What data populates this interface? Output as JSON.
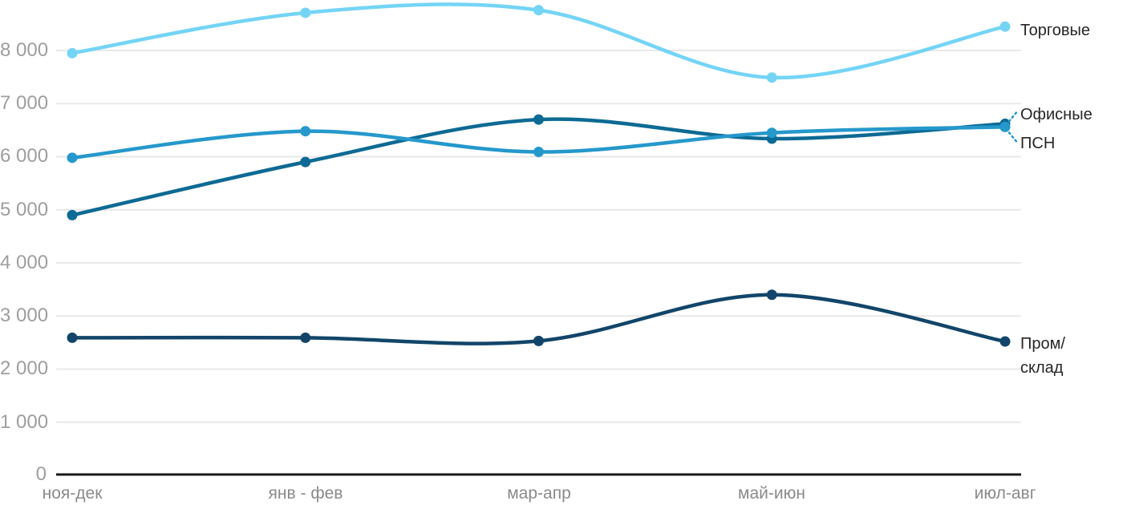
{
  "chart_data": {
    "type": "line",
    "title": "",
    "xlabel": "",
    "ylabel": "",
    "categories": [
      "ноя-дек",
      "янв - фев",
      "мар-апр",
      "май-июн",
      "июл-авг"
    ],
    "series": [
      {
        "name": "Торговые",
        "color": "#74d4f6",
        "values": [
          7950,
          8710,
          8760,
          7490,
          8450
        ]
      },
      {
        "name": "Офисные",
        "color": "#0d6a94",
        "values": [
          4900,
          5900,
          6700,
          6340,
          6620
        ]
      },
      {
        "name": "ПСН",
        "color": "#2598cc",
        "values": [
          5980,
          6480,
          6090,
          6450,
          6560
        ]
      },
      {
        "name": "Пром/склад",
        "color": "#124569",
        "values": [
          2590,
          2590,
          2530,
          3400,
          2520
        ]
      }
    ],
    "y_ticks": [
      "8 000",
      "7 000",
      "6 000",
      "5 000",
      "4 000",
      "3 000",
      "2 000",
      "1 000",
      "0"
    ],
    "ylim": [
      0,
      8800
    ],
    "y_step": 1000,
    "grid": true,
    "legend_position": "right-inline",
    "grid_color": "#e8e8e8",
    "axis_line_color": "#1a1a1a",
    "y_tick_color": "#9e9e9e",
    "x_tick_color": "#8a8a8a",
    "label_color": "#262626",
    "connector_color": "#2598cc"
  },
  "series_labels": {
    "torgovye": "Торговые",
    "ofisnye": "Офисные",
    "psn": "ПСН",
    "prom_line1": "Пром/",
    "prom_line2": "склад"
  }
}
